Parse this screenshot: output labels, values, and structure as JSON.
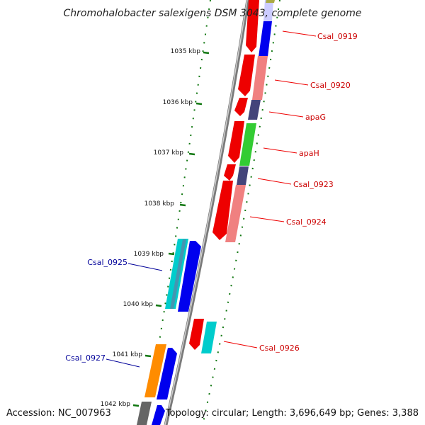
{
  "title": "Chromohalobacter salexigens DSM 3043, complete genome",
  "footer": {
    "accession": "Accession: NC_007963",
    "summary": "Topology: circular; Length: 3,696,649 bp; Genes: 3,388"
  },
  "colors": {
    "forward_label": "#cc0000",
    "reverse_label": "#000099",
    "backbone": "#888888",
    "ticks": "#117711"
  },
  "ticks": [
    "1035 kbp",
    "1036 kbp",
    "1037 kbp",
    "1038 kbp",
    "1039 kbp",
    "1040 kbp",
    "1041 kbp",
    "1042 kbp"
  ],
  "forward_gene_labels": [
    "Csal_0919",
    "Csal_0920",
    "apaG",
    "apaH",
    "Csal_0923",
    "Csal_0924",
    "Csal_0926"
  ],
  "reverse_gene_labels": [
    "Csal_0925",
    "Csal_0927"
  ]
}
